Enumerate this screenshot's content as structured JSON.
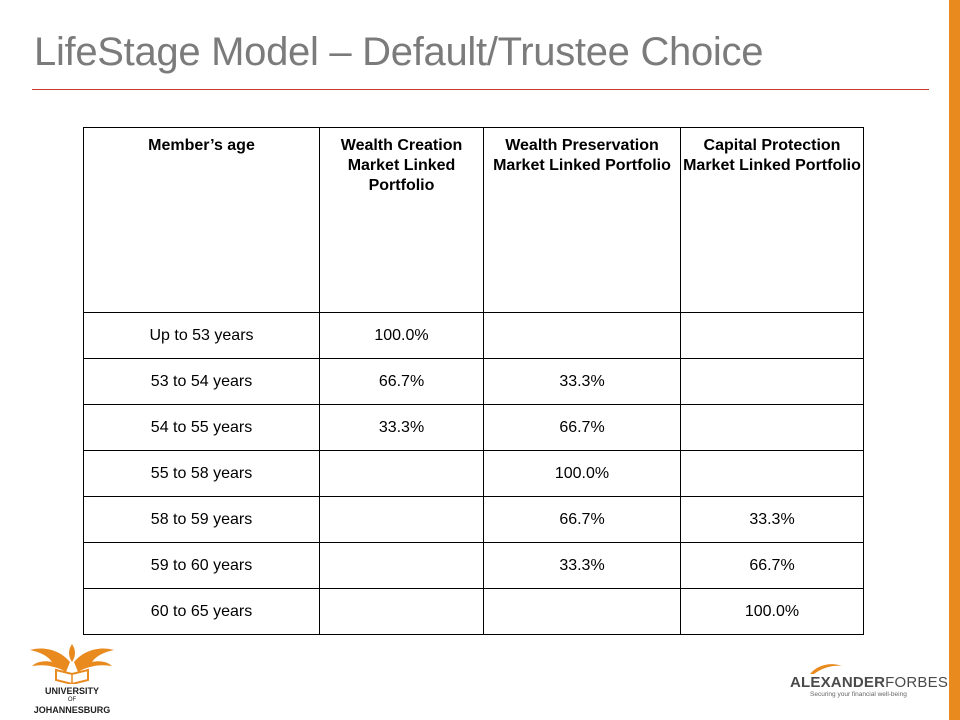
{
  "slide": {
    "title": "LifeStage Model – Default/Trustee Choice"
  },
  "table": {
    "headers": [
      "Member’s age",
      "Wealth Creation Market Linked Portfolio",
      "Wealth Preservation Market Linked Portfolio",
      "Capital Protection Market Linked Portfolio"
    ],
    "rows": [
      [
        "Up to 53 years",
        "100.0%",
        "",
        ""
      ],
      [
        "53 to 54 years",
        "66.7%",
        "33.3%",
        ""
      ],
      [
        "54 to 55 years",
        "33.3%",
        "66.7%",
        ""
      ],
      [
        "55 to 58 years",
        "",
        "100.0%",
        ""
      ],
      [
        "58 to 59 years",
        "",
        "66.7%",
        "33.3%"
      ],
      [
        "59 to 60 years",
        "",
        "33.3%",
        "66.7%"
      ],
      [
        "60 to 65 years",
        "",
        "",
        "100.0%"
      ]
    ]
  },
  "logos": {
    "uj": {
      "line1": "UNIVERSITY",
      "line2": "OF",
      "line3": "JOHANNESBURG",
      "color": "#e98a1f"
    },
    "af": {
      "name_bold": "ALEXANDER",
      "name_light": "FORBES",
      "tagline": "Securing your financial well-being",
      "accent": "#e98a1f"
    }
  },
  "colors": {
    "accent_orange": "#e98a1f",
    "title_grey": "#7b7b7b",
    "rule_red": "#c7402e"
  }
}
